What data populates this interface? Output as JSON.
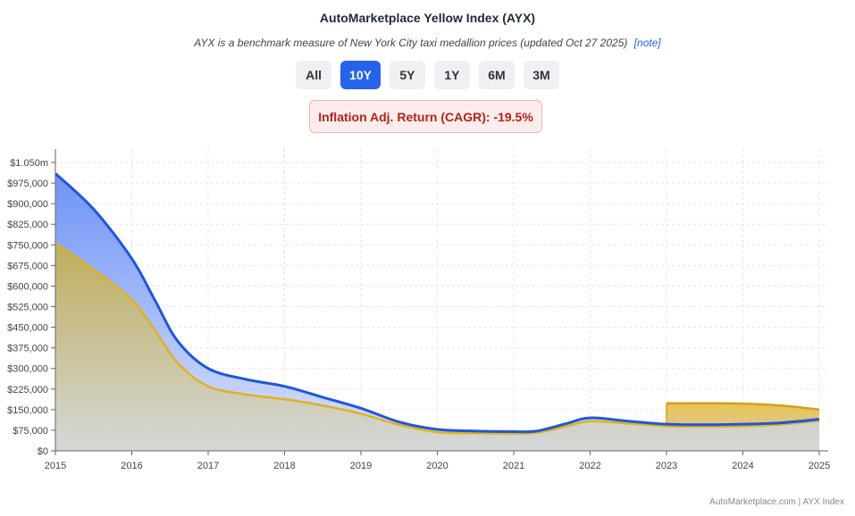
{
  "header": {
    "title": "AutoMarketplace Yellow Index (AYX)",
    "subtitle": "AYX is a benchmark measure of New York City taxi medallion prices (updated Oct 27 2025)",
    "note_link": "[note]"
  },
  "ranges": [
    {
      "label": "All",
      "active": false
    },
    {
      "label": "10Y",
      "active": true
    },
    {
      "label": "5Y",
      "active": false
    },
    {
      "label": "1Y",
      "active": false
    },
    {
      "label": "6M",
      "active": false
    },
    {
      "label": "3M",
      "active": false
    }
  ],
  "cagr_label": "Inflation Adj. Return (CAGR): -19.5%",
  "footer": "AutoMarketplace.com | AYX Index",
  "colors": {
    "nominal_line": "#1d56e0",
    "nominal_fill": "#6f93f5",
    "adjusted_line": "#e0b21b",
    "adjusted_fill": "#bfae5c",
    "projection_fill": "#e8c04a",
    "grid": "#e6e6e6"
  },
  "chart_data": {
    "type": "area",
    "title": "",
    "xlabel": "",
    "ylabel": "",
    "xlim": [
      2015,
      2025
    ],
    "ylim": [
      0,
      1050000
    ],
    "x_ticks": [
      2015,
      2016,
      2017,
      2018,
      2019,
      2020,
      2021,
      2022,
      2023,
      2024,
      2025
    ],
    "y_ticks": [
      0,
      75000,
      150000,
      225000,
      300000,
      375000,
      450000,
      525000,
      600000,
      675000,
      750000,
      825000,
      900000,
      975000,
      1050000
    ],
    "y_tick_labels": [
      "$0",
      "$75,000",
      "$150,000",
      "$225,000",
      "$300,000",
      "$375,000",
      "$450,000",
      "$525,000",
      "$600,000",
      "$675,000",
      "$750,000",
      "$825,000",
      "$900,000",
      "$975,000",
      "$1.050m"
    ],
    "grid": true,
    "series": [
      {
        "key": "nominal",
        "x": [
          2015,
          2015.5,
          2016,
          2016.3,
          2016.6,
          2017,
          2017.5,
          2018,
          2018.5,
          2019,
          2019.5,
          2020,
          2020.5,
          2021,
          2021.3,
          2021.7,
          2022,
          2022.5,
          2023,
          2023.5,
          2024,
          2024.5,
          2025
        ],
        "y": [
          1010000,
          880000,
          700000,
          550000,
          400000,
          300000,
          260000,
          235000,
          195000,
          155000,
          105000,
          78000,
          72000,
          70000,
          72000,
          100000,
          120000,
          108000,
          97000,
          95000,
          97000,
          102000,
          115000
        ]
      },
      {
        "key": "adjusted",
        "x": [
          2015,
          2015.5,
          2016,
          2016.3,
          2016.6,
          2017,
          2017.5,
          2018,
          2018.5,
          2019,
          2019.5,
          2020,
          2020.5,
          2021,
          2021.3,
          2021.7,
          2022,
          2022.5,
          2023,
          2023.5,
          2024,
          2024.5,
          2025
        ],
        "y": [
          755000,
          660000,
          550000,
          440000,
          320000,
          235000,
          205000,
          188000,
          165000,
          135000,
          95000,
          68000,
          64000,
          63000,
          66000,
          90000,
          108000,
          100000,
          90000,
          88000,
          90000,
          96000,
          110000
        ]
      },
      {
        "key": "projection",
        "x": [
          2023,
          2023.5,
          2024,
          2024.5,
          2025
        ],
        "y": [
          173000,
          173000,
          172000,
          165000,
          150000
        ]
      }
    ]
  }
}
